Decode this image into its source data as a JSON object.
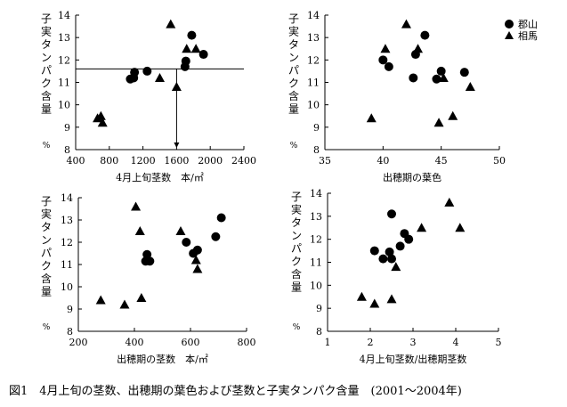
{
  "caption": "図1　4月上旬の茎数、出穂期の葉色および茎数と子実タンパク含量　(2001〜2004年)",
  "legend": {
    "items": [
      {
        "label": "郡山",
        "marker": "circle"
      },
      {
        "label": "相馬",
        "marker": "triangle"
      }
    ]
  },
  "chart_data": [
    {
      "type": "scatter",
      "xlabel": "4月上旬茎数　本/㎡",
      "ylabel": [
        "子",
        "実",
        "タ",
        "ン",
        "パ",
        "ク",
        "含",
        "量"
      ],
      "yunit": "%",
      "xlim": [
        400,
        2400
      ],
      "ylim": [
        8,
        14
      ],
      "xticks": [
        "400",
        "800",
        "1200",
        "1600",
        "2000",
        "2400"
      ],
      "yticks": [
        "8",
        "9",
        "10",
        "11",
        "12",
        "13",
        "14"
      ],
      "reference": {
        "y": 11.6,
        "x": 1600
      },
      "series": [
        {
          "name": "郡山",
          "marker": "circle",
          "points": [
            [
              1050,
              11.15
            ],
            [
              1090,
              11.2
            ],
            [
              1100,
              11.45
            ],
            [
              1250,
              11.5
            ],
            [
              1700,
              11.7
            ],
            [
              1710,
              11.95
            ],
            [
              1780,
              13.1
            ],
            [
              1920,
              12.25
            ]
          ]
        },
        {
          "name": "相馬",
          "marker": "triangle",
          "points": [
            [
              660,
              9.4
            ],
            [
              700,
              9.5
            ],
            [
              720,
              9.2
            ],
            [
              1400,
              11.2
            ],
            [
              1530,
              13.6
            ],
            [
              1600,
              10.8
            ],
            [
              1720,
              12.5
            ],
            [
              1830,
              12.5
            ]
          ]
        }
      ]
    },
    {
      "type": "scatter",
      "xlabel": "出穂期の葉色",
      "ylabel": [
        "子",
        "実",
        "タ",
        "ン",
        "パ",
        "ク",
        "含",
        "量"
      ],
      "yunit": "%",
      "xlim": [
        35,
        50
      ],
      "ylim": [
        8,
        14
      ],
      "xticks": [
        "35",
        "40",
        "45",
        "50"
      ],
      "yticks": [
        "8",
        "9",
        "10",
        "11",
        "12",
        "13",
        "14"
      ],
      "series": [
        {
          "name": "郡山",
          "marker": "circle",
          "points": [
            [
              40,
              12.0
            ],
            [
              40.5,
              11.7
            ],
            [
              42.6,
              11.2
            ],
            [
              42.8,
              12.25
            ],
            [
              43.6,
              13.1
            ],
            [
              44.6,
              11.15
            ],
            [
              45.0,
              11.5
            ],
            [
              47.0,
              11.45
            ]
          ]
        },
        {
          "name": "相馬",
          "marker": "triangle",
          "points": [
            [
              39.0,
              9.4
            ],
            [
              40.2,
              12.5
            ],
            [
              42.0,
              13.6
            ],
            [
              43.0,
              12.5
            ],
            [
              44.8,
              9.2
            ],
            [
              45.2,
              11.2
            ],
            [
              46.0,
              9.5
            ],
            [
              47.5,
              10.8
            ]
          ]
        }
      ]
    },
    {
      "type": "scatter",
      "xlabel": "出穂期の茎数　本/㎡",
      "ylabel": [
        "子",
        "実",
        "タ",
        "ン",
        "パ",
        "ク",
        "含",
        "量"
      ],
      "yunit": "%",
      "xlim": [
        200,
        800
      ],
      "ylim": [
        8,
        14
      ],
      "xticks": [
        "200",
        "400",
        "600",
        "800"
      ],
      "yticks": [
        "8",
        "9",
        "10",
        "11",
        "12",
        "13",
        "14"
      ],
      "series": [
        {
          "name": "郡山",
          "marker": "circle",
          "points": [
            [
              440,
              11.15
            ],
            [
              445,
              11.45
            ],
            [
              455,
              11.15
            ],
            [
              585,
              12.0
            ],
            [
              610,
              11.5
            ],
            [
              625,
              11.65
            ],
            [
              690,
              12.25
            ],
            [
              710,
              13.1
            ]
          ]
        },
        {
          "name": "相馬",
          "marker": "triangle",
          "points": [
            [
              280,
              9.4
            ],
            [
              365,
              9.2
            ],
            [
              405,
              13.6
            ],
            [
              420,
              12.5
            ],
            [
              425,
              9.5
            ],
            [
              565,
              12.5
            ],
            [
              620,
              11.2
            ],
            [
              625,
              10.8
            ]
          ]
        }
      ]
    },
    {
      "type": "scatter",
      "xlabel": "4月上旬茎数/出穂期茎数",
      "ylabel": [
        "子",
        "実",
        "タ",
        "ン",
        "パ",
        "ク",
        "含",
        "量"
      ],
      "yunit": "%",
      "xlim": [
        1,
        5
      ],
      "ylim": [
        8,
        14
      ],
      "xticks": [
        "1",
        "2",
        "3",
        "4",
        "5"
      ],
      "yticks": [
        "8",
        "9",
        "10",
        "11",
        "12",
        "13",
        "14"
      ],
      "series": [
        {
          "name": "郡山",
          "marker": "circle",
          "points": [
            [
              2.1,
              11.5
            ],
            [
              2.3,
              11.15
            ],
            [
              2.45,
              11.45
            ],
            [
              2.5,
              11.15
            ],
            [
              2.5,
              13.1
            ],
            [
              2.7,
              11.7
            ],
            [
              2.8,
              12.25
            ],
            [
              2.9,
              12.0
            ]
          ]
        },
        {
          "name": "相馬",
          "marker": "triangle",
          "points": [
            [
              1.8,
              9.5
            ],
            [
              2.1,
              9.2
            ],
            [
              2.5,
              9.4
            ],
            [
              2.6,
              10.8
            ],
            [
              3.2,
              12.5
            ],
            [
              3.85,
              13.6
            ],
            [
              4.1,
              12.5
            ]
          ]
        }
      ]
    }
  ]
}
